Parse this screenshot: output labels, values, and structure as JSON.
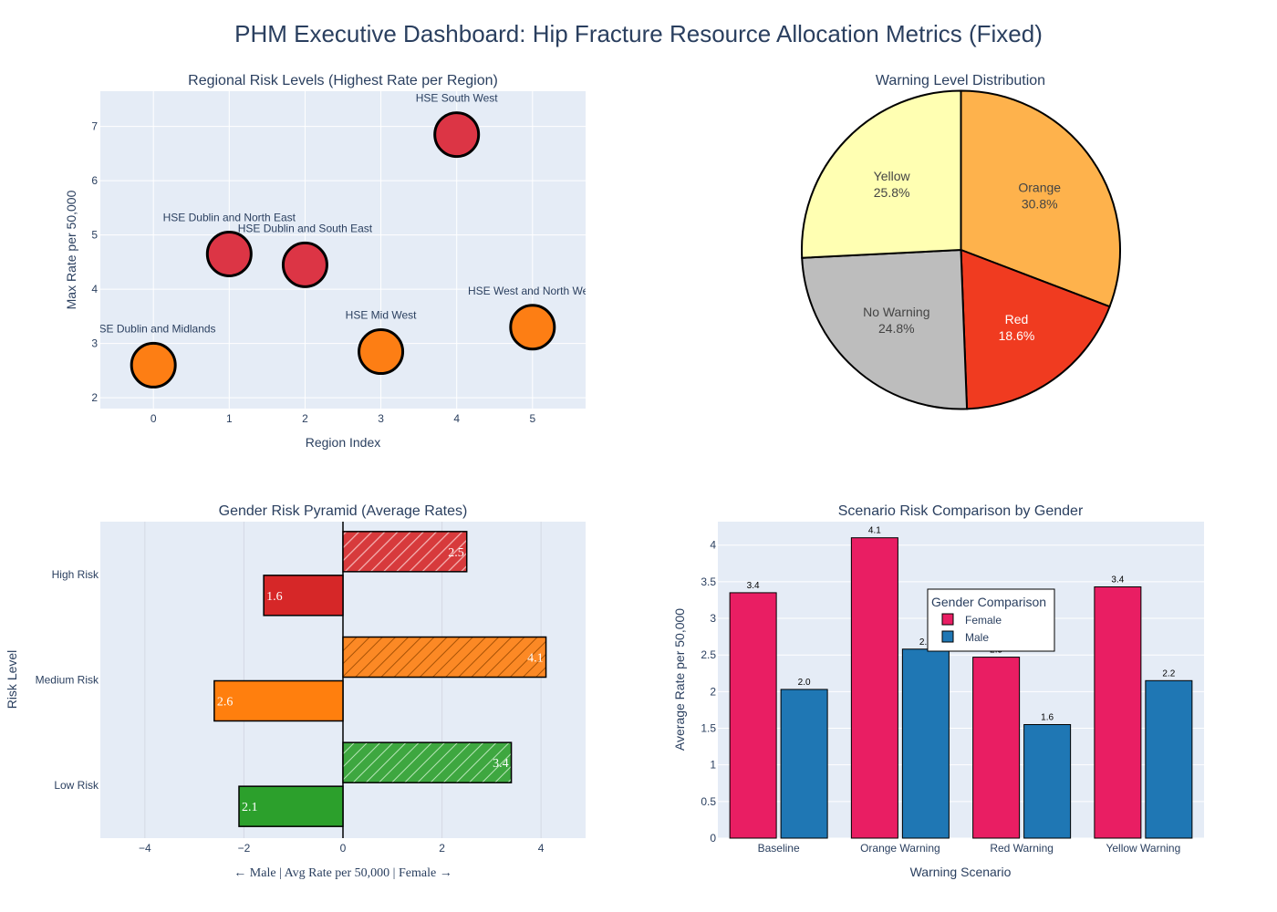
{
  "dashboard_title": "PHM Executive Dashboard: Hip Fracture Resource Allocation Metrics (Fixed)",
  "colors": {
    "plot_bg": "#e5ecf6",
    "red": "#dc3545",
    "orange": "#fd7e14",
    "male_red": "#d62728",
    "male_orange": "#ff7f0e",
    "male_green": "#2ca02c",
    "female_pink": "#e91e63",
    "male_blue": "#1f77b4",
    "pie_yellow": "#ffffb2",
    "pie_orange": "#feb24c",
    "pie_red": "#f03b20",
    "pie_grey": "#bdbdbd"
  },
  "chart_data": [
    {
      "type": "scatter",
      "title": "Regional Risk Levels (Highest Rate per Region)",
      "xlabel": "Region Index",
      "ylabel": "Max Rate per 50,000",
      "xlim": [
        -0.7,
        5.7
      ],
      "ylim": [
        1.8,
        7.65
      ],
      "xticks": [
        0,
        1,
        2,
        3,
        4,
        5
      ],
      "yticks": [
        2,
        3,
        4,
        5,
        6,
        7
      ],
      "grid": true,
      "points": [
        {
          "x": 0,
          "y": 2.6,
          "label": "HSE Dublin and Midlands",
          "level": "orange"
        },
        {
          "x": 1,
          "y": 4.65,
          "label": "HSE Dublin and North East",
          "level": "red"
        },
        {
          "x": 2,
          "y": 4.45,
          "label": "HSE Dublin and South East",
          "level": "red"
        },
        {
          "x": 3,
          "y": 2.85,
          "label": "HSE Mid West",
          "level": "orange"
        },
        {
          "x": 4,
          "y": 6.85,
          "label": "HSE South West",
          "level": "red"
        },
        {
          "x": 5,
          "y": 3.3,
          "label": "HSE West and North West",
          "level": "orange"
        }
      ]
    },
    {
      "type": "pie",
      "title": "Warning Level Distribution",
      "slices": [
        {
          "label": "Orange",
          "percent": 30.8,
          "percent_label": "30.8%"
        },
        {
          "label": "Red",
          "percent": 18.6,
          "percent_label": "18.6%"
        },
        {
          "label": "No Warning",
          "percent": 24.8,
          "percent_label": "24.8%"
        },
        {
          "label": "Yellow",
          "percent": 25.8,
          "percent_label": "25.8%"
        }
      ]
    },
    {
      "type": "bar",
      "orientation": "horizontal",
      "title": "Gender Risk Pyramid (Average Rates)",
      "xlabel": "← Male | Avg Rate per 50,000 | Female →",
      "ylabel": "Risk Level",
      "xlim": [
        -4.9,
        4.9
      ],
      "xticks": [
        {
          "v": -4,
          "t": "−4"
        },
        {
          "v": -2,
          "t": "−2"
        },
        {
          "v": 0,
          "t": "0"
        },
        {
          "v": 2,
          "t": "2"
        },
        {
          "v": 4,
          "t": "4"
        }
      ],
      "grid": true,
      "categories": [
        "High Risk",
        "Medium Risk",
        "Low Risk"
      ],
      "series": [
        {
          "name": "Female",
          "values": [
            2.5,
            4.1,
            3.4
          ],
          "labels": [
            "2.5",
            "4.1",
            "3.4"
          ]
        },
        {
          "name": "Male",
          "values": [
            -1.6,
            -2.6,
            -2.1
          ],
          "labels": [
            "1.6",
            "2.6",
            "2.1"
          ]
        }
      ]
    },
    {
      "type": "bar",
      "title": "Scenario Risk Comparison by Gender",
      "xlabel": "Warning Scenario",
      "ylabel": "Average Rate per 50,000",
      "ylim": [
        0,
        4.32
      ],
      "yticks": [
        {
          "v": 0,
          "t": "0"
        },
        {
          "v": 0.5,
          "t": "0.5"
        },
        {
          "v": 1,
          "t": "1"
        },
        {
          "v": 1.5,
          "t": "1.5"
        },
        {
          "v": 2,
          "t": "2"
        },
        {
          "v": 2.5,
          "t": "2.5"
        },
        {
          "v": 3,
          "t": "3"
        },
        {
          "v": 3.5,
          "t": "3.5"
        },
        {
          "v": 4,
          "t": "4"
        }
      ],
      "grid": true,
      "categories": [
        "Baseline",
        "Orange Warning",
        "Red Warning",
        "Yellow Warning"
      ],
      "legend_title": "Gender Comparison",
      "legend_position": "center",
      "series": [
        {
          "name": "Female",
          "values": [
            3.35,
            4.1,
            2.47,
            3.43
          ],
          "labels": [
            "3.4",
            "4.1",
            "2.5",
            "3.4"
          ]
        },
        {
          "name": "Male",
          "values": [
            2.03,
            2.58,
            1.55,
            2.15
          ],
          "labels": [
            "2.0",
            "2.6",
            "1.6",
            "2.2"
          ]
        }
      ]
    }
  ]
}
